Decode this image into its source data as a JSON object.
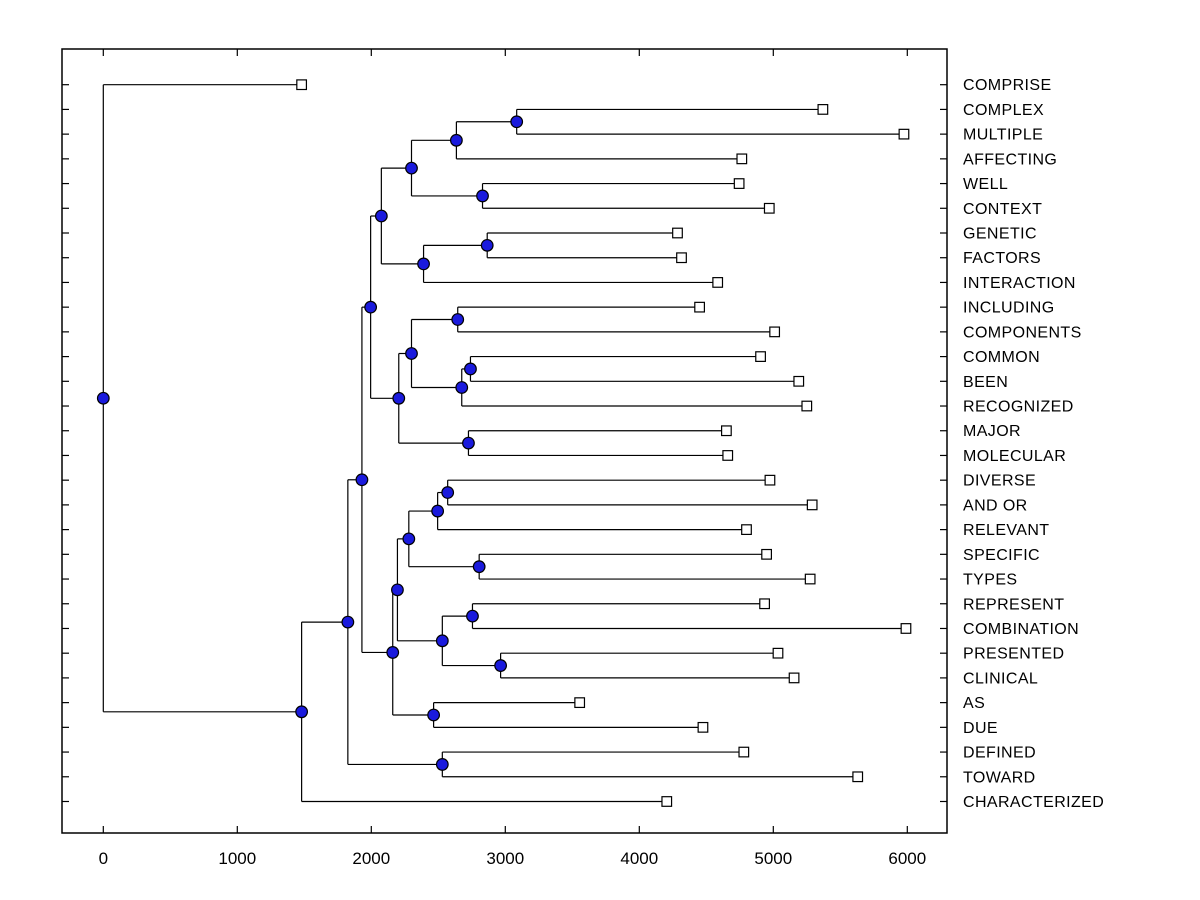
{
  "window": {
    "background": "#ffffff"
  },
  "chart_data": {
    "type": "dendrogram",
    "orientation": "horizontal-left-to-right",
    "title": "",
    "xlabel": "",
    "ylabel": "",
    "grid": false,
    "x_ticks": [
      0,
      1000,
      2000,
      3000,
      4000,
      5000,
      6000
    ],
    "x_tick_labels": [
      "0",
      "1000",
      "2000",
      "3000",
      "4000",
      "5000",
      "6000"
    ],
    "xlim": [
      -310,
      6290
    ],
    "styles": {
      "line_color": "#000000",
      "internal_node_fill": "#1a1add",
      "internal_node_stroke": "#000000",
      "leaf_marker_fill": "#ffffff",
      "leaf_marker_stroke": "#000000",
      "label_color": "#000000"
    },
    "leaves": [
      {
        "label": "COMPRISE",
        "x": 1480
      },
      {
        "label": "COMPLEX",
        "x": 5370
      },
      {
        "label": "MULTIPLE",
        "x": 5975
      },
      {
        "label": "AFFECTING",
        "x": 4765
      },
      {
        "label": "WELL",
        "x": 4745
      },
      {
        "label": "CONTEXT",
        "x": 4970
      },
      {
        "label": "GENETIC",
        "x": 4285
      },
      {
        "label": "FACTORS",
        "x": 4315
      },
      {
        "label": "INTERACTION",
        "x": 4585
      },
      {
        "label": "INCLUDING",
        "x": 4450
      },
      {
        "label": "COMPONENTS",
        "x": 5010
      },
      {
        "label": "COMMON",
        "x": 4905
      },
      {
        "label": "BEEN",
        "x": 5190
      },
      {
        "label": "RECOGNIZED",
        "x": 5250
      },
      {
        "label": "MAJOR",
        "x": 4650
      },
      {
        "label": "MOLECULAR",
        "x": 4660
      },
      {
        "label": "DIVERSE",
        "x": 4975
      },
      {
        "label": "AND OR",
        "x": 5290
      },
      {
        "label": "RELEVANT",
        "x": 4800
      },
      {
        "label": "SPECIFIC",
        "x": 4950
      },
      {
        "label": "TYPES",
        "x": 5275
      },
      {
        "label": "REPRESENT",
        "x": 4935
      },
      {
        "label": "COMBINATION",
        "x": 5990
      },
      {
        "label": "PRESENTED",
        "x": 5035
      },
      {
        "label": "CLINICAL",
        "x": 5155
      },
      {
        "label": "AS",
        "x": 3555
      },
      {
        "label": "DUE",
        "x": 4475
      },
      {
        "label": "DEFINED",
        "x": 4780
      },
      {
        "label": "TOWARD",
        "x": 5630
      },
      {
        "label": "CHARACTERIZED",
        "x": 4205
      }
    ],
    "internal_nodes": [
      {
        "id": "root",
        "x": 0,
        "children": [
          "COMPRISE",
          "n2"
        ]
      },
      {
        "id": "n2",
        "x": 1480,
        "children": [
          "n3",
          "CHARACTERIZED"
        ]
      },
      {
        "id": "n3",
        "x": 1825,
        "children": [
          "n4",
          "nDefTow"
        ]
      },
      {
        "id": "n4",
        "x": 1930,
        "children": [
          "nUpper",
          "nLower"
        ]
      },
      {
        "id": "nUpper",
        "x": 1995,
        "children": [
          "nA",
          "nMid"
        ]
      },
      {
        "id": "nA",
        "x": 2075,
        "children": [
          "nB",
          "nInter"
        ]
      },
      {
        "id": "nB",
        "x": 2300,
        "children": [
          "nC",
          "nWellCtx"
        ]
      },
      {
        "id": "nC",
        "x": 2635,
        "children": [
          "nCplxMult",
          "AFFECTING"
        ]
      },
      {
        "id": "nCplxMult",
        "x": 3085,
        "children": [
          "COMPLEX",
          "MULTIPLE"
        ]
      },
      {
        "id": "nWellCtx",
        "x": 2830,
        "children": [
          "WELL",
          "CONTEXT"
        ]
      },
      {
        "id": "nInter",
        "x": 2390,
        "children": [
          "nGenFac",
          "INTERACTION"
        ]
      },
      {
        "id": "nGenFac",
        "x": 2865,
        "children": [
          "GENETIC",
          "FACTORS"
        ]
      },
      {
        "id": "nMid",
        "x": 2205,
        "children": [
          "nMid1",
          "nMajMol"
        ]
      },
      {
        "id": "nMid1",
        "x": 2300,
        "children": [
          "nIncComp",
          "nRec"
        ]
      },
      {
        "id": "nIncComp",
        "x": 2645,
        "children": [
          "INCLUDING",
          "COMPONENTS"
        ]
      },
      {
        "id": "nRec",
        "x": 2675,
        "children": [
          "nComBeen",
          "RECOGNIZED"
        ]
      },
      {
        "id": "nComBeen",
        "x": 2740,
        "children": [
          "COMMON",
          "BEEN"
        ]
      },
      {
        "id": "nMajMol",
        "x": 2725,
        "children": [
          "MAJOR",
          "MOLECULAR"
        ]
      },
      {
        "id": "nLower",
        "x": 2160,
        "children": [
          "nLow1",
          "nAsDue"
        ]
      },
      {
        "id": "nLow1",
        "x": 2195,
        "children": [
          "nLow2",
          "nLow3"
        ]
      },
      {
        "id": "nLow2",
        "x": 2280,
        "children": [
          "nRel",
          "nSpecTyp"
        ]
      },
      {
        "id": "nRel",
        "x": 2495,
        "children": [
          "nDivAnd",
          "RELEVANT"
        ]
      },
      {
        "id": "nDivAnd",
        "x": 2570,
        "children": [
          "DIVERSE",
          "AND OR"
        ]
      },
      {
        "id": "nSpecTyp",
        "x": 2805,
        "children": [
          "SPECIFIC",
          "TYPES"
        ]
      },
      {
        "id": "nLow3",
        "x": 2530,
        "children": [
          "nRepCom",
          "nPreCli"
        ]
      },
      {
        "id": "nRepCom",
        "x": 2755,
        "children": [
          "REPRESENT",
          "COMBINATION"
        ]
      },
      {
        "id": "nPreCli",
        "x": 2965,
        "children": [
          "PRESENTED",
          "CLINICAL"
        ]
      },
      {
        "id": "nAsDue",
        "x": 2465,
        "children": [
          "AS",
          "DUE"
        ]
      },
      {
        "id": "nDefTow",
        "x": 2530,
        "children": [
          "DEFINED",
          "TOWARD"
        ]
      }
    ]
  }
}
